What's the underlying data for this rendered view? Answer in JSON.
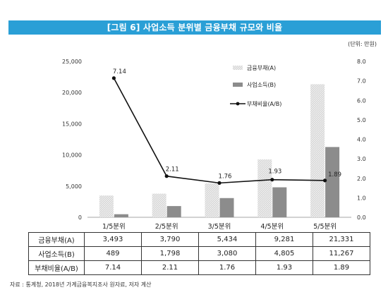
{
  "title": "[그림 6] 사업소득 분위별 금융부채 규모와 비율",
  "unit": "(단위: 만원)",
  "source": "자료 : 통계청, 2018년 가계금융복지조사 원자료, 저자 계산",
  "colors": {
    "title_bg": "#2a9fd6",
    "bar_debt": "#d6d6d6",
    "bar_income": "#8c8c8c",
    "line": "#111111"
  },
  "chart_data": {
    "type": "bar",
    "categories": [
      "1/5분위",
      "2/5분위",
      "3/5분위",
      "4/5분위",
      "5/5분위"
    ],
    "series": [
      {
        "name": "금융부채(A)",
        "type": "bar",
        "axis": "left",
        "values": [
          3493,
          3790,
          5434,
          9281,
          21331
        ]
      },
      {
        "name": "사업소득(B)",
        "type": "bar",
        "axis": "left",
        "values": [
          489,
          1798,
          3080,
          4805,
          11267
        ]
      },
      {
        "name": "부채비율(A/B)",
        "type": "line",
        "axis": "right",
        "values": [
          7.14,
          2.11,
          1.76,
          1.93,
          1.89
        ]
      }
    ],
    "point_labels": [
      "7.14",
      "2.11",
      "1.76",
      "1.93",
      "1.89"
    ],
    "ylim": [
      0,
      25000
    ],
    "y_ticks": [
      "0",
      "5,000",
      "10,000",
      "15,000",
      "20,000",
      "25,000"
    ],
    "y2lim": [
      0,
      8
    ],
    "y2_ticks": [
      "0.0",
      "1.0",
      "2.0",
      "3.0",
      "4.0",
      "5.0",
      "6.0",
      "7.0",
      "8.0"
    ],
    "legend_position": "top-right",
    "grid": false
  },
  "table": {
    "rows": [
      {
        "label": "금융부채(A)",
        "values": [
          "3,493",
          "3,790",
          "5,434",
          "9,281",
          "21,331"
        ]
      },
      {
        "label": "사업소득(B)",
        "values": [
          "489",
          "1,798",
          "3,080",
          "4,805",
          "11,267"
        ]
      },
      {
        "label": "부채비율(A/B)",
        "values": [
          "7.14",
          "2.11",
          "1.76",
          "1.93",
          "1.89"
        ]
      }
    ]
  }
}
